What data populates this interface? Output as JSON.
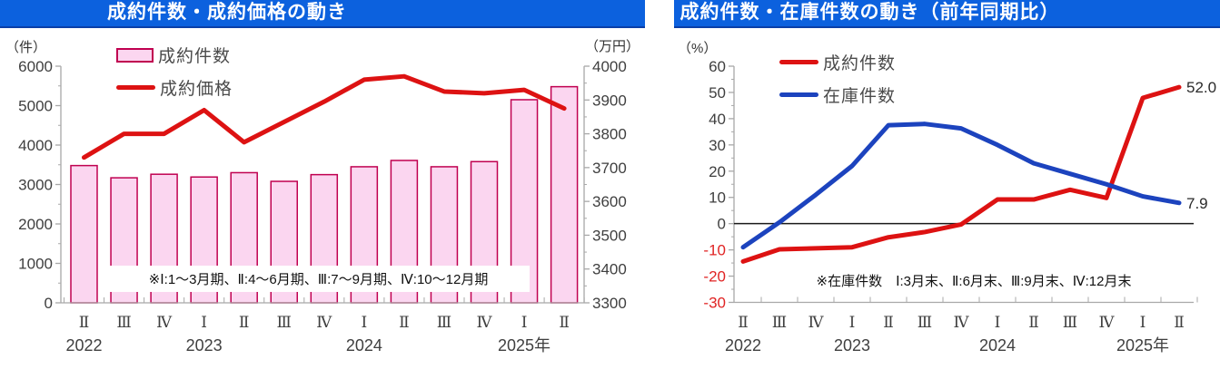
{
  "colors": {
    "title_bar_bg": "#0c61de",
    "title_bar_edge": "#0a3fa8",
    "title_text": "#ffffff",
    "bar_fill": "#fbd6f0",
    "bar_border": "#c00050",
    "price_line": "#dd1212",
    "sales_yoy_line": "#dd1212",
    "stock_yoy_line": "#1c43be",
    "axis_line": "#a8a8a8",
    "axis_label_text": "#3f3f3f",
    "negative_axis_label": "#e02424",
    "zero_line": "#1a1a1a",
    "end_label_text": "#2a2a2a",
    "note_text": "#111111"
  },
  "chart_data": [
    {
      "type": "bar+line",
      "title": "成約件数・成約価格の動き",
      "unit_left": "（件）",
      "unit_right": "（万円）",
      "categories": [
        "Ⅱ",
        "Ⅲ",
        "Ⅳ",
        "Ⅰ",
        "Ⅱ",
        "Ⅲ",
        "Ⅳ",
        "Ⅰ",
        "Ⅱ",
        "Ⅲ",
        "Ⅳ",
        "Ⅰ",
        "Ⅱ"
      ],
      "year_labels": [
        {
          "label": "2022",
          "index": 0
        },
        {
          "label": "2023",
          "index": 3
        },
        {
          "label": "2024",
          "index": 7
        },
        {
          "label": "2025年",
          "index": 11
        }
      ],
      "series": [
        {
          "name": "成約件数",
          "type": "bar",
          "axis": "left",
          "values": [
            3480,
            3170,
            3260,
            3190,
            3300,
            3080,
            3250,
            3450,
            3610,
            3450,
            3580,
            5150,
            5480
          ]
        },
        {
          "name": "成約価格",
          "type": "line",
          "axis": "right",
          "values": [
            3730,
            3800,
            3800,
            3870,
            3775,
            3835,
            3895,
            3960,
            3970,
            3925,
            3920,
            3930,
            3875
          ]
        }
      ],
      "axis_left": {
        "min": 0,
        "max": 6000,
        "step": 1000
      },
      "axis_right": {
        "min": 3300,
        "max": 4000,
        "step": 100
      },
      "legend_position": "top-left",
      "grid": false,
      "note": "※Ⅰ:1～3月期、Ⅱ:4～6月期、Ⅲ:7～9月期、Ⅳ:10～12月期"
    },
    {
      "type": "line",
      "title": "成約件数・在庫件数の動き（前年同期比）",
      "unit_left": "（%）",
      "categories": [
        "Ⅱ",
        "Ⅲ",
        "Ⅳ",
        "Ⅰ",
        "Ⅱ",
        "Ⅲ",
        "Ⅳ",
        "Ⅰ",
        "Ⅱ",
        "Ⅲ",
        "Ⅳ",
        "Ⅰ",
        "Ⅱ"
      ],
      "year_labels": [
        {
          "label": "2022",
          "index": 0
        },
        {
          "label": "2023",
          "index": 3
        },
        {
          "label": "2024",
          "index": 7
        },
        {
          "label": "2025年",
          "index": 11
        }
      ],
      "series": [
        {
          "name": "成約件数",
          "type": "line",
          "values": [
            -14.4,
            -9.8,
            -9.4,
            -9.0,
            -5.2,
            -3.2,
            -0.3,
            9.2,
            9.2,
            12.9,
            9.8,
            47.9,
            52.0
          ],
          "end_label": "52.0"
        },
        {
          "name": "在庫件数",
          "type": "line",
          "values": [
            -9.0,
            0.5,
            11.0,
            22.0,
            37.5,
            38.0,
            36.3,
            30.0,
            23.0,
            19.0,
            15.0,
            10.4,
            7.9
          ],
          "end_label": "7.9"
        }
      ],
      "axis_left": {
        "min": -30,
        "max": 60,
        "step": 10
      },
      "zero_line": true,
      "legend_position": "top-left",
      "grid": false,
      "note": "※在庫件数　Ⅰ:3月末、Ⅱ:6月末、Ⅲ:9月末、Ⅳ:12月末"
    }
  ]
}
